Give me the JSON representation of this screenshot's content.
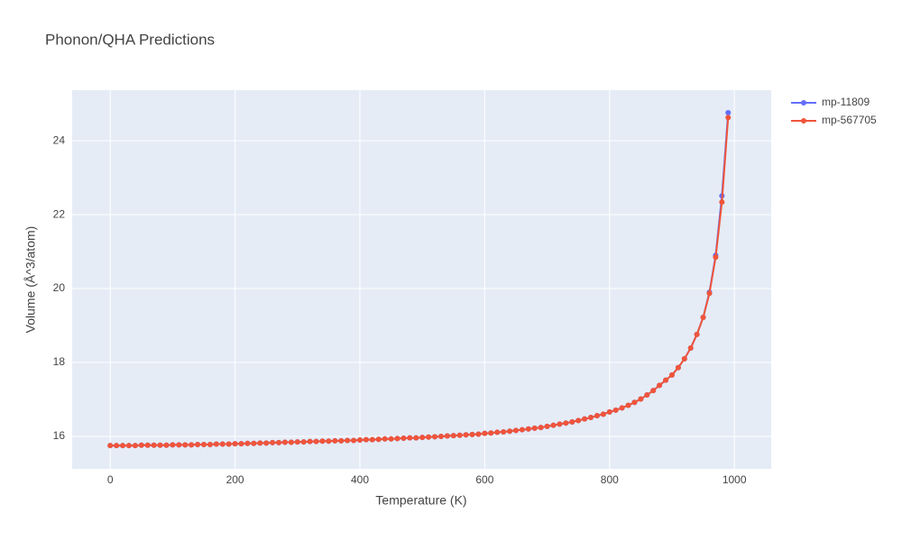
{
  "chart_data": {
    "type": "line",
    "title": "Phonon/QHA Predictions",
    "xlabel": "Temperature (K)",
    "ylabel": "Volume (Å^3/atom)",
    "x": [
      0,
      10,
      20,
      30,
      40,
      50,
      60,
      70,
      80,
      90,
      100,
      110,
      120,
      130,
      140,
      150,
      160,
      170,
      180,
      190,
      200,
      210,
      220,
      230,
      240,
      250,
      260,
      270,
      280,
      290,
      300,
      310,
      320,
      330,
      340,
      350,
      360,
      370,
      380,
      390,
      400,
      410,
      420,
      430,
      440,
      450,
      460,
      470,
      480,
      490,
      500,
      510,
      520,
      530,
      540,
      550,
      560,
      570,
      580,
      590,
      600,
      610,
      620,
      630,
      640,
      650,
      660,
      670,
      680,
      690,
      700,
      710,
      720,
      730,
      740,
      750,
      760,
      770,
      780,
      790,
      800,
      810,
      820,
      830,
      840,
      850,
      860,
      870,
      880,
      890,
      900,
      910,
      920,
      930,
      940,
      950,
      960,
      970,
      980,
      990
    ],
    "series": [
      {
        "name": "mp-11809",
        "color": "#636efa",
        "values": [
          15.75,
          15.75,
          15.75,
          15.75,
          15.75,
          15.76,
          15.76,
          15.76,
          15.76,
          15.76,
          15.77,
          15.77,
          15.77,
          15.77,
          15.78,
          15.78,
          15.78,
          15.79,
          15.79,
          15.79,
          15.8,
          15.8,
          15.81,
          15.81,
          15.82,
          15.82,
          15.83,
          15.83,
          15.84,
          15.84,
          15.85,
          15.85,
          15.86,
          15.86,
          15.87,
          15.87,
          15.88,
          15.88,
          15.89,
          15.89,
          15.9,
          15.91,
          15.91,
          15.92,
          15.93,
          15.93,
          15.94,
          15.95,
          15.96,
          15.96,
          15.97,
          15.98,
          15.99,
          16.0,
          16.01,
          16.02,
          16.03,
          16.04,
          16.05,
          16.06,
          16.08,
          16.09,
          16.11,
          16.12,
          16.14,
          16.16,
          16.18,
          16.2,
          16.22,
          16.24,
          16.27,
          16.3,
          16.33,
          16.36,
          16.39,
          16.43,
          16.47,
          16.51,
          16.56,
          16.6,
          16.66,
          16.71,
          16.77,
          16.84,
          16.92,
          17.01,
          17.12,
          17.24,
          17.38,
          17.52,
          17.66,
          17.86,
          18.1,
          18.39,
          18.76,
          19.22,
          19.9,
          20.9,
          22.51,
          24.76
        ]
      },
      {
        "name": "mp-567705",
        "color": "#ef553b",
        "values": [
          15.75,
          15.75,
          15.75,
          15.75,
          15.75,
          15.76,
          15.76,
          15.76,
          15.76,
          15.76,
          15.77,
          15.77,
          15.77,
          15.77,
          15.78,
          15.78,
          15.78,
          15.79,
          15.79,
          15.79,
          15.8,
          15.8,
          15.81,
          15.81,
          15.82,
          15.82,
          15.83,
          15.83,
          15.84,
          15.84,
          15.85,
          15.85,
          15.86,
          15.86,
          15.87,
          15.87,
          15.88,
          15.88,
          15.89,
          15.89,
          15.9,
          15.91,
          15.91,
          15.92,
          15.93,
          15.93,
          15.94,
          15.95,
          15.96,
          15.96,
          15.97,
          15.98,
          15.99,
          16.0,
          16.01,
          16.02,
          16.03,
          16.04,
          16.05,
          16.06,
          16.08,
          16.09,
          16.11,
          16.12,
          16.14,
          16.16,
          16.18,
          16.2,
          16.22,
          16.24,
          16.27,
          16.3,
          16.33,
          16.36,
          16.39,
          16.43,
          16.47,
          16.51,
          16.56,
          16.6,
          16.66,
          16.71,
          16.77,
          16.84,
          16.92,
          17.01,
          17.12,
          17.24,
          17.38,
          17.52,
          17.66,
          17.86,
          18.1,
          18.39,
          18.76,
          19.22,
          19.87,
          20.85,
          22.34,
          24.63
        ]
      }
    ],
    "xlim": [
      -61,
      1059
    ],
    "xticks": [
      0,
      200,
      400,
      600,
      800,
      1000
    ],
    "ylim": [
      15.12,
      25.37
    ],
    "yticks": [
      16,
      18,
      20,
      22,
      24
    ],
    "grid": true,
    "legend": "right"
  }
}
